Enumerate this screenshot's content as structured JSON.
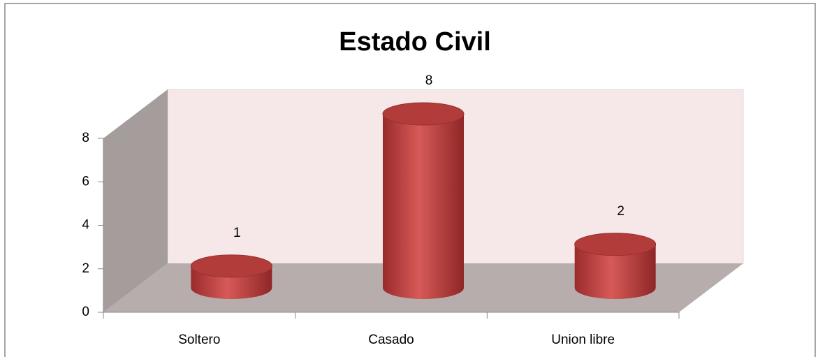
{
  "chart_data": {
    "type": "bar3d",
    "title": "Estado Civil",
    "categories": [
      "Soltero",
      "Casado",
      "Union libre"
    ],
    "values": [
      1,
      8,
      2
    ],
    "color": "#c0504d",
    "ylim": [
      0,
      8
    ],
    "yticks": [
      0,
      2,
      4,
      6,
      8
    ],
    "grid": false
  }
}
